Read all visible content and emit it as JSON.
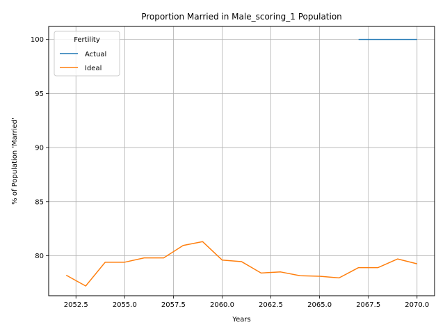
{
  "chart_data": {
    "type": "line",
    "title": "Proportion Married in Male_scoring_1 Population",
    "xlabel": "Years",
    "ylabel": "% of Population 'Married'",
    "xlim": [
      2051.1,
      2070.9
    ],
    "ylim": [
      76.3,
      101.2
    ],
    "grid": true,
    "x_ticks": [
      2052.5,
      2055.0,
      2057.5,
      2060.0,
      2062.5,
      2065.0,
      2067.5,
      2070.0
    ],
    "x_tick_labels": [
      "2052.5",
      "2055.0",
      "2057.5",
      "2060.0",
      "2062.5",
      "2065.0",
      "2067.5",
      "2070.0"
    ],
    "y_ticks": [
      80,
      85,
      90,
      95,
      100
    ],
    "y_tick_labels": [
      "80",
      "85",
      "90",
      "95",
      "100"
    ],
    "legend": {
      "title": "Fertility",
      "position": "top-left"
    },
    "series": [
      {
        "name": "Actual",
        "color": "#1f77b4",
        "x": [
          2067,
          2068,
          2069,
          2070
        ],
        "y": [
          100.0,
          100.0,
          100.0,
          100.0
        ]
      },
      {
        "name": "Ideal",
        "color": "#ff7f0e",
        "x": [
          2052,
          2053,
          2054,
          2055,
          2056,
          2057,
          2058,
          2059,
          2060,
          2061,
          2062,
          2063,
          2064,
          2065,
          2066,
          2067,
          2068,
          2069,
          2070
        ],
        "y": [
          78.2,
          77.2,
          79.4,
          79.4,
          79.8,
          79.8,
          80.95,
          81.3,
          79.6,
          79.45,
          78.4,
          78.5,
          78.15,
          78.1,
          77.95,
          78.9,
          78.9,
          79.7,
          79.25
        ]
      }
    ]
  }
}
